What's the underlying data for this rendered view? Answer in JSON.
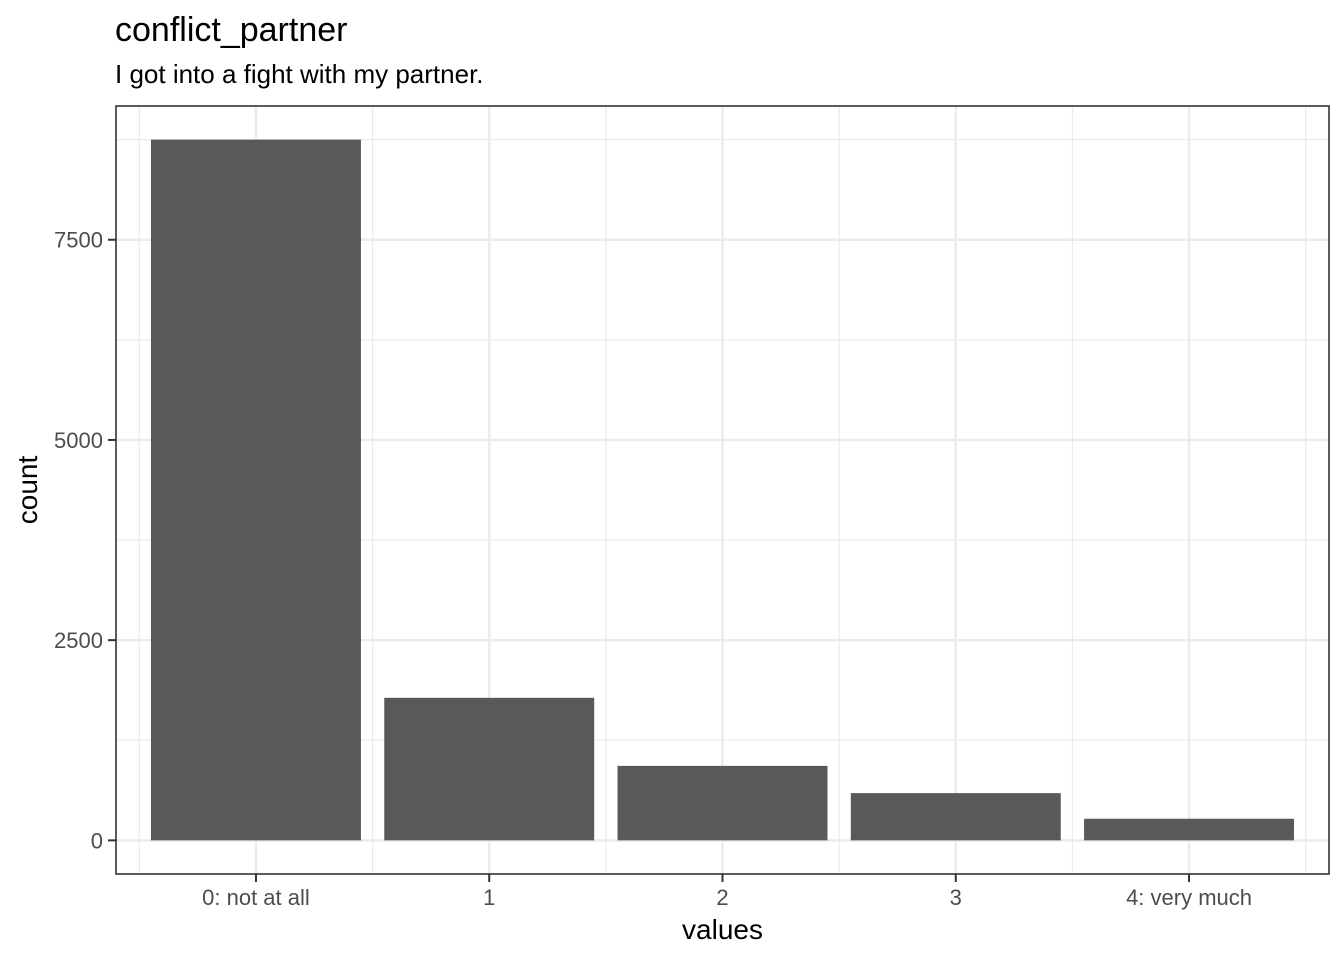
{
  "chart_data": {
    "type": "bar",
    "title": "conflict_partner",
    "subtitle": "I got into a fight with my partner.",
    "xlabel": "values",
    "ylabel": "count",
    "categories": [
      "0: not at all",
      "1",
      "2",
      "3",
      "4: very much"
    ],
    "values": [
      8750,
      1780,
      930,
      590,
      270
    ],
    "ylim": [
      -420,
      9170
    ],
    "yticks": [
      0,
      2500,
      5000,
      7500
    ],
    "ytick_labels": [
      "0",
      "2500",
      "5000",
      "7500"
    ],
    "grid": true,
    "bar_color": "#595959",
    "grid_color": "#ebebeb",
    "panel_border_color": "#333333"
  }
}
